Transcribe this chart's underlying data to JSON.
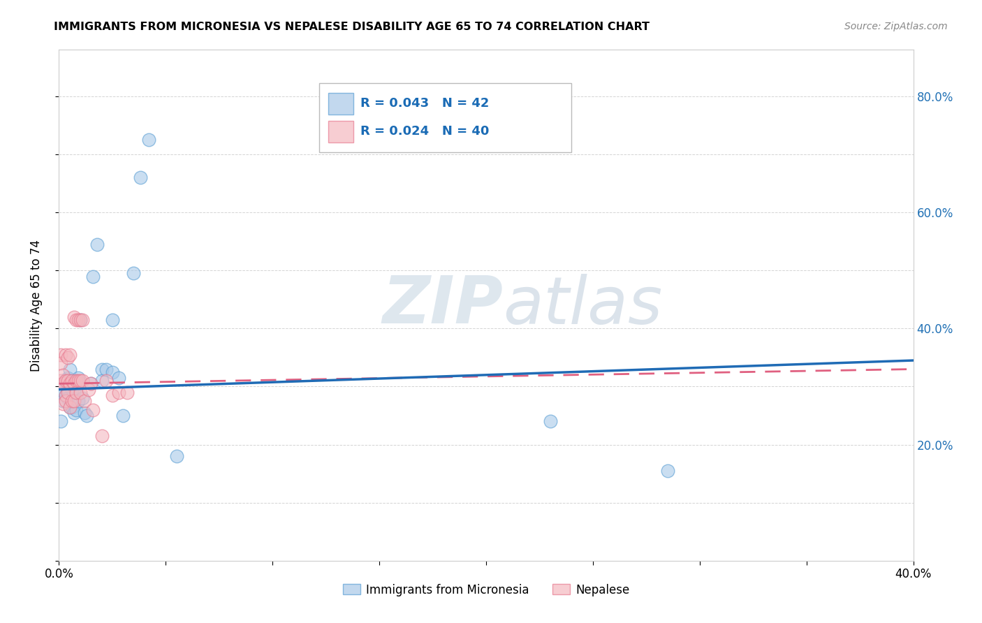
{
  "title": "IMMIGRANTS FROM MICRONESIA VS NEPALESE DISABILITY AGE 65 TO 74 CORRELATION CHART",
  "source": "Source: ZipAtlas.com",
  "ylabel": "Disability Age 65 to 74",
  "xlim": [
    0.0,
    0.4
  ],
  "ylim": [
    0.0,
    0.88
  ],
  "xticks": [
    0.0,
    0.05,
    0.1,
    0.15,
    0.2,
    0.25,
    0.3,
    0.35,
    0.4
  ],
  "xtick_labels": [
    "0.0%",
    "",
    "",
    "",
    "",
    "",
    "",
    "",
    "40.0%"
  ],
  "right_yticks": [
    0.2,
    0.4,
    0.6,
    0.8
  ],
  "right_ytick_labels": [
    "20.0%",
    "40.0%",
    "60.0%",
    "80.0%"
  ],
  "legend_r1": "R = 0.043",
  "legend_n1": "N = 42",
  "legend_r2": "R = 0.024",
  "legend_n2": "N = 40",
  "legend_label1": "Immigrants from Micronesia",
  "legend_label2": "Nepalese",
  "color_blue_fill": "#a8c8e8",
  "color_blue_edge": "#5a9fd4",
  "color_pink_fill": "#f4b8c0",
  "color_pink_edge": "#e87a90",
  "color_blue_line": "#1f6bb5",
  "color_pink_line": "#e06080",
  "blue_x": [
    0.001,
    0.001,
    0.002,
    0.002,
    0.003,
    0.003,
    0.004,
    0.004,
    0.004,
    0.005,
    0.005,
    0.005,
    0.006,
    0.006,
    0.007,
    0.007,
    0.007,
    0.008,
    0.008,
    0.009,
    0.009,
    0.01,
    0.01,
    0.011,
    0.012,
    0.013,
    0.015,
    0.016,
    0.018,
    0.02,
    0.02,
    0.022,
    0.025,
    0.025,
    0.028,
    0.03,
    0.035,
    0.038,
    0.042,
    0.055,
    0.23,
    0.285
  ],
  "blue_y": [
    0.29,
    0.24,
    0.305,
    0.275,
    0.31,
    0.285,
    0.315,
    0.295,
    0.28,
    0.33,
    0.31,
    0.265,
    0.295,
    0.265,
    0.31,
    0.29,
    0.255,
    0.31,
    0.26,
    0.315,
    0.275,
    0.415,
    0.305,
    0.28,
    0.255,
    0.25,
    0.305,
    0.49,
    0.545,
    0.33,
    0.31,
    0.33,
    0.415,
    0.325,
    0.315,
    0.25,
    0.495,
    0.66,
    0.725,
    0.18,
    0.24,
    0.155
  ],
  "pink_x": [
    0.001,
    0.001,
    0.001,
    0.002,
    0.002,
    0.002,
    0.003,
    0.003,
    0.003,
    0.003,
    0.004,
    0.004,
    0.004,
    0.005,
    0.005,
    0.005,
    0.006,
    0.006,
    0.007,
    0.007,
    0.007,
    0.008,
    0.008,
    0.008,
    0.009,
    0.009,
    0.01,
    0.01,
    0.01,
    0.011,
    0.011,
    0.012,
    0.014,
    0.015,
    0.016,
    0.02,
    0.022,
    0.025,
    0.028,
    0.032
  ],
  "pink_y": [
    0.355,
    0.34,
    0.31,
    0.32,
    0.305,
    0.27,
    0.355,
    0.31,
    0.285,
    0.275,
    0.35,
    0.31,
    0.29,
    0.355,
    0.305,
    0.265,
    0.31,
    0.275,
    0.42,
    0.305,
    0.275,
    0.31,
    0.29,
    0.415,
    0.31,
    0.415,
    0.31,
    0.415,
    0.29,
    0.31,
    0.415,
    0.275,
    0.295,
    0.305,
    0.26,
    0.215,
    0.31,
    0.285,
    0.29,
    0.29
  ],
  "trend_blue_start": 0.295,
  "trend_blue_end": 0.345,
  "trend_pink_start": 0.305,
  "trend_pink_end": 0.33,
  "watermark_zip": "ZIP",
  "watermark_atlas": "atlas",
  "background_color": "#ffffff",
  "grid_color": "#d0d0d0"
}
